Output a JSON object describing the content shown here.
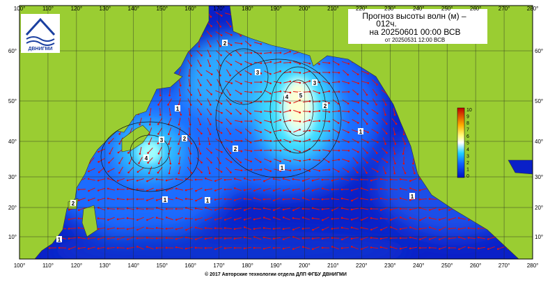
{
  "title": {
    "line1": "Прогноз высоты волн (м) –",
    "line2": "012ч.",
    "line3": "на 20250601 00:00 ВСВ",
    "line4": "от 20250531 12:00 ВСВ"
  },
  "logo": "ДВНИГМИ",
  "lon_labels": [
    "100°",
    "110°",
    "120°",
    "130°",
    "140°",
    "150°",
    "160°",
    "170°",
    "180°",
    "190°",
    "200°",
    "210°",
    "220°",
    "230°",
    "240°",
    "250°",
    "260°",
    "270°",
    "280°"
  ],
  "lat_labels": [
    "60°",
    "50°",
    "40°",
    "30°",
    "20°",
    "10°"
  ],
  "colorbar_labels": [
    "10",
    "9",
    "8",
    "7",
    "6",
    "5",
    "4",
    "3",
    "2",
    "1",
    "0"
  ],
  "contour_labels": [
    "5",
    "4",
    "3",
    "3",
    "4",
    "3",
    "2",
    "2",
    "1",
    "1",
    "1",
    "1",
    "2",
    "1",
    "1",
    "1",
    "2",
    "2"
  ],
  "footer": "© 2017 Авторские технологии отдела ДЛП ФГБУ ДВНИГМИ"
}
